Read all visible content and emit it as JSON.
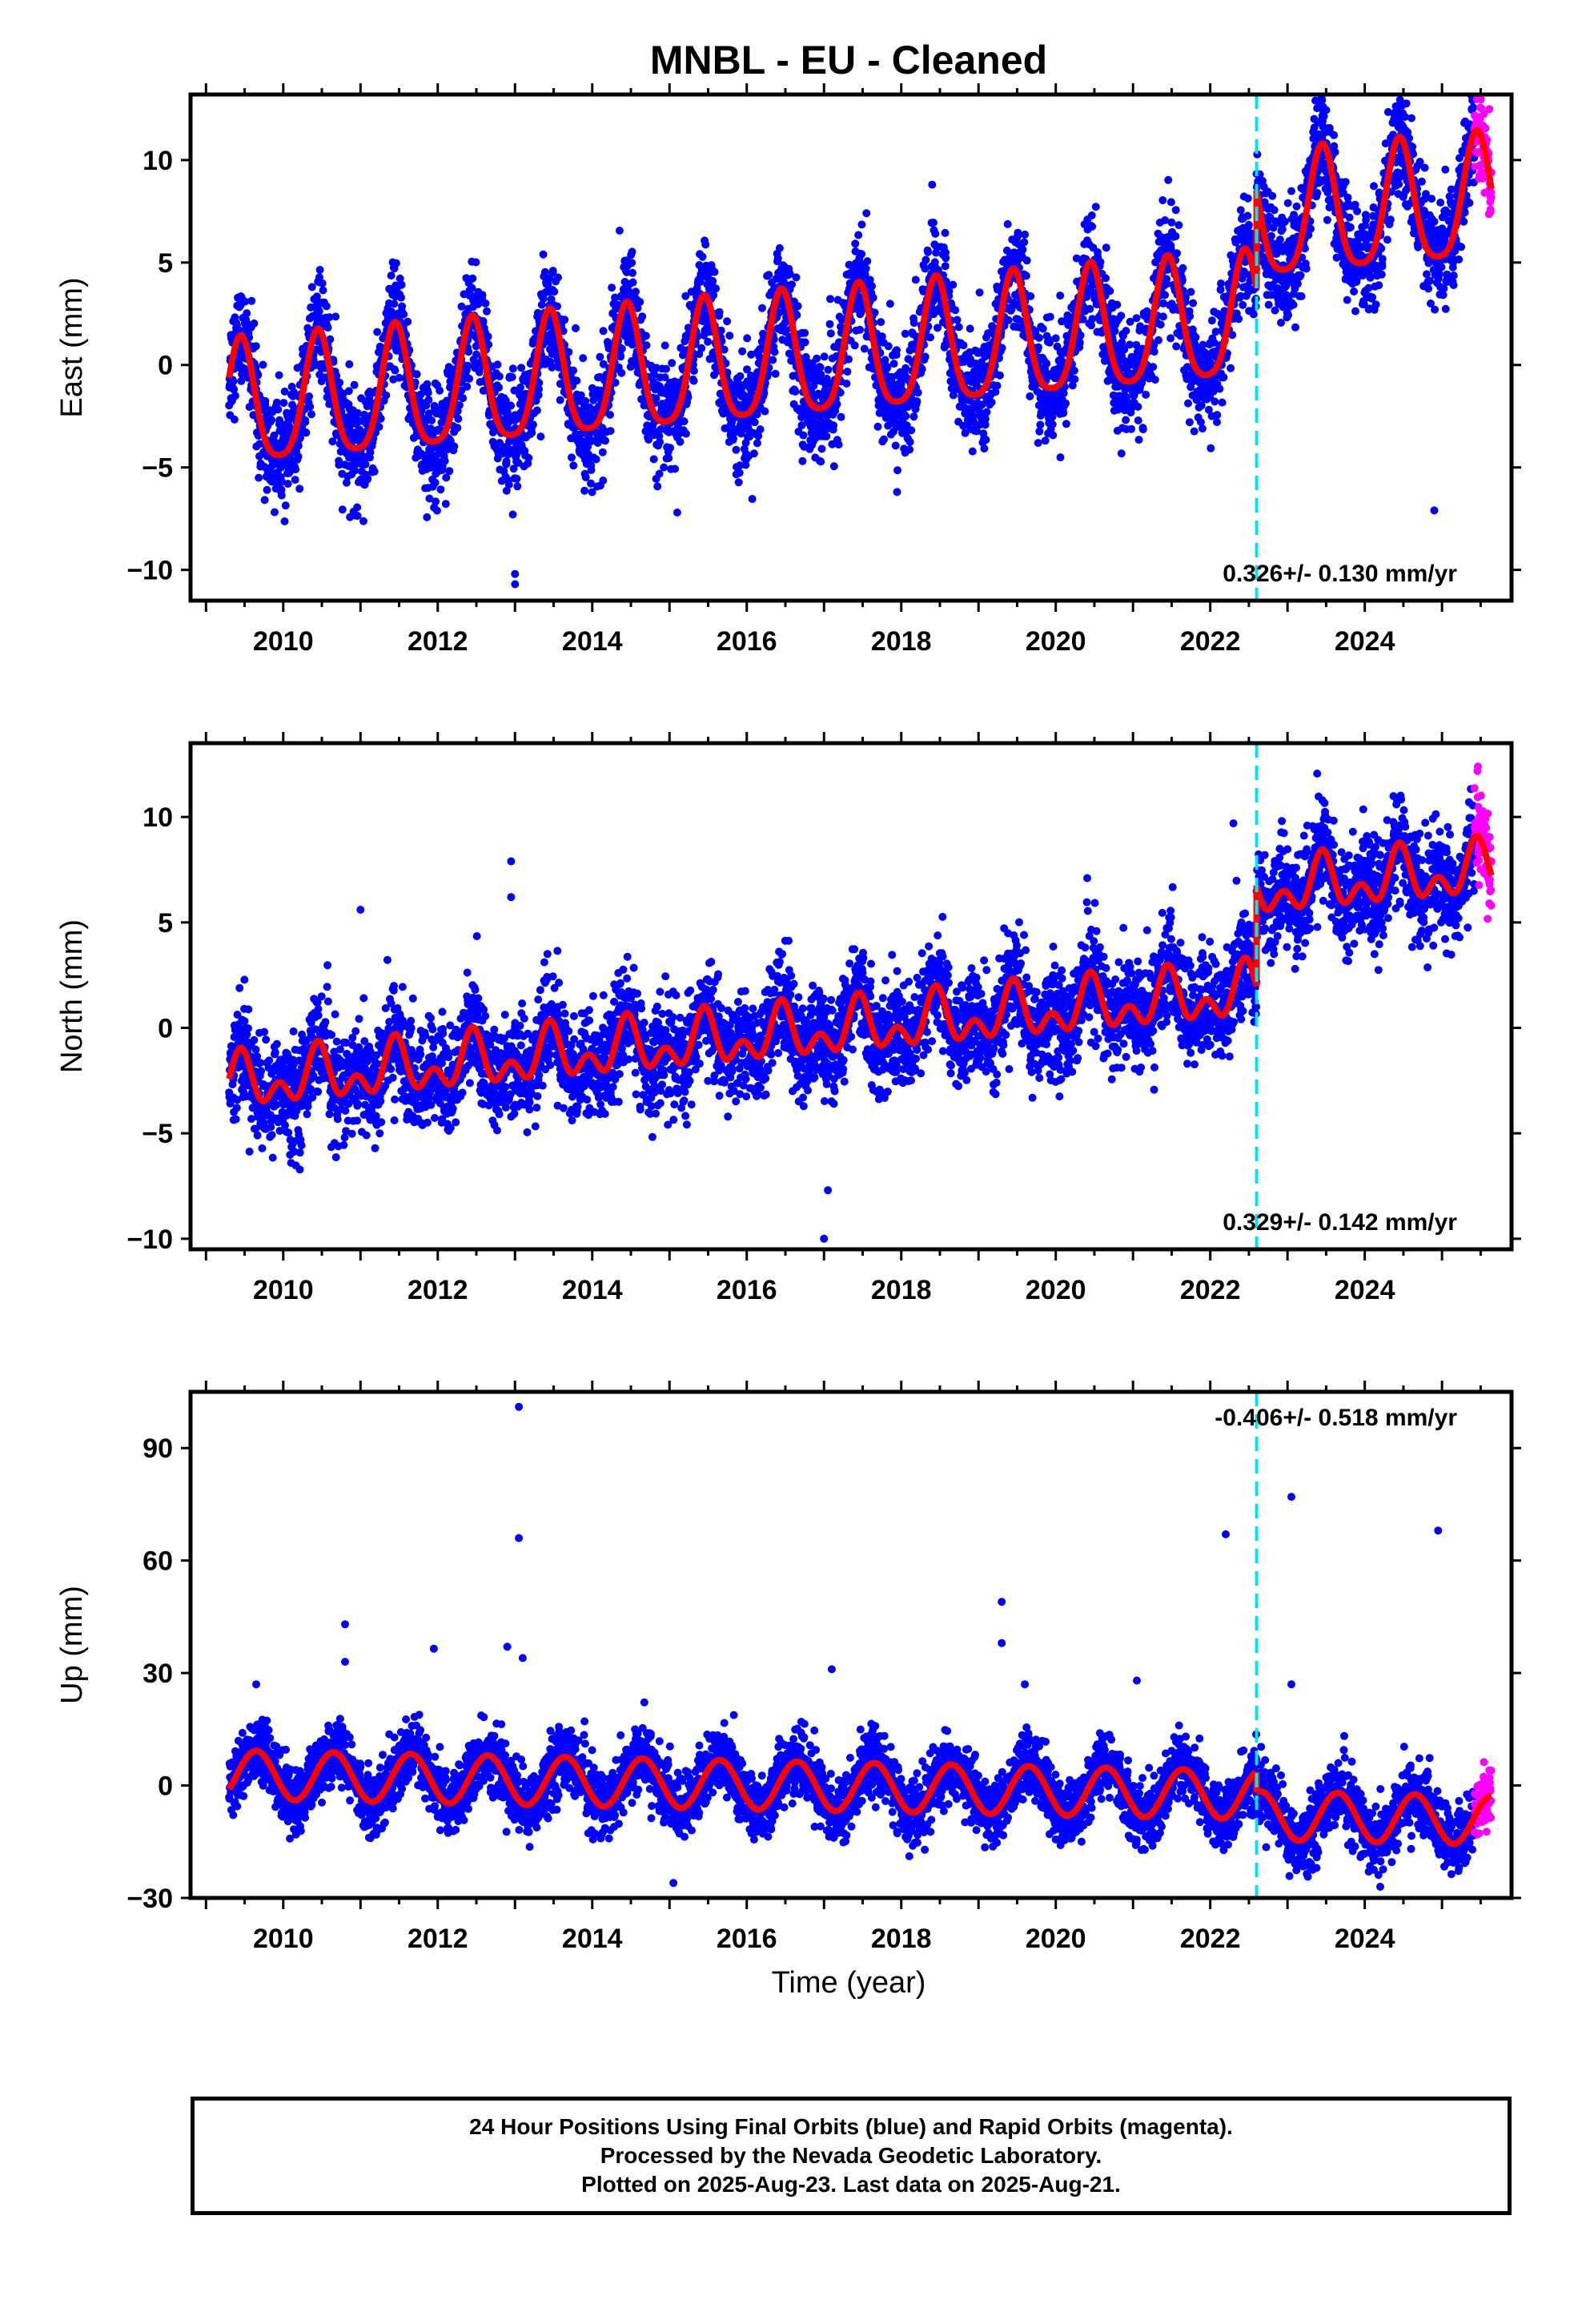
{
  "colors": {
    "final_orbits": "#0000ff",
    "rapid_orbits": "#ff00ff",
    "model": "#ff0000",
    "event_line": "#00e5ee",
    "axes": "#000000",
    "background": "#ffffff"
  },
  "title": "MNBL  - EU - Cleaned",
  "x_axis_label": "Time (year)",
  "x_ticks": [
    "2010",
    "2012",
    "2014",
    "2016",
    "2018",
    "2020",
    "2022",
    "2024"
  ],
  "chart_data": [
    {
      "type": "scatter",
      "name": "East",
      "ylabel": "East (mm)",
      "xlim": [
        2008.8,
        2025.9
      ],
      "ylim": [
        -11.5,
        13.2
      ],
      "yticks": [
        -10,
        -5,
        0,
        5,
        10
      ],
      "ytick_labels": [
        "−10",
        "−5",
        "0",
        "5",
        "10"
      ],
      "data_start": 2009.3,
      "event_year": 2022.6,
      "rapid_start": 2025.42,
      "data_end": 2025.64,
      "velocity_text": "0.326+/- 0.130 mm/yr",
      "velocity_position": "bottom-right",
      "model_params": {
        "intercept_2009": -2.3,
        "rate": 0.326,
        "offset": 4.8,
        "annual_amplitude": 3.0,
        "semiannual_amplitude": 0.6,
        "annual_peak_year_fraction": 0.45
      },
      "scatter_sd": 1.3,
      "outliers": [
        {
          "x": 2013.0,
          "y": -10.7
        },
        {
          "x": 2013.0,
          "y": -10.2
        },
        {
          "x": 2018.4,
          "y": 8.8
        },
        {
          "x": 2024.9,
          "y": -7.1
        },
        {
          "x": 2015.1,
          "y": -7.2
        }
      ]
    },
    {
      "type": "scatter",
      "name": "North",
      "ylabel": "North (mm)",
      "xlim": [
        2008.8,
        2025.9
      ],
      "ylim": [
        -10.5,
        13.5
      ],
      "yticks": [
        -10,
        -5,
        0,
        5,
        10
      ],
      "ytick_labels": [
        "−10",
        "−5",
        "0",
        "5",
        "10"
      ],
      "data_start": 2009.3,
      "event_year": 2022.6,
      "rapid_start": 2025.42,
      "data_end": 2025.64,
      "velocity_text": "0.329+/- 0.142 mm/yr",
      "velocity_position": "bottom-right",
      "model_params": {
        "intercept_2009": -2.8,
        "rate": 0.329,
        "offset": 4.8,
        "annual_amplitude": 0.9,
        "semiannual_amplitude": 0.8,
        "annual_peak_year_fraction": 0.45
      },
      "scatter_sd": 1.2,
      "outliers": [
        {
          "x": 2012.95,
          "y": 7.9
        },
        {
          "x": 2012.95,
          "y": 6.2
        },
        {
          "x": 2011.0,
          "y": 5.6
        },
        {
          "x": 2017.0,
          "y": -10.0
        },
        {
          "x": 2017.05,
          "y": -7.7
        },
        {
          "x": 2022.3,
          "y": 9.7
        }
      ]
    },
    {
      "type": "scatter",
      "name": "Up",
      "ylabel": "Up (mm)",
      "xlim": [
        2008.8,
        2025.9
      ],
      "ylim": [
        -30,
        105
      ],
      "yticks": [
        -30,
        0,
        30,
        60,
        90
      ],
      "ytick_labels": [
        "−30",
        "0",
        "30",
        "60",
        "90"
      ],
      "data_start": 2009.3,
      "event_year": 2022.6,
      "rapid_start": 2025.42,
      "data_end": 2025.64,
      "velocity_text": "-0.406+/- 0.518 mm/yr",
      "velocity_position": "top-right",
      "model_params": {
        "intercept_2009": 3.0,
        "rate": -0.406,
        "offset": -5.5,
        "annual_amplitude": 6.5,
        "semiannual_amplitude": 0.0,
        "annual_peak_year_fraction": 0.65
      },
      "scatter_sd": 4.2,
      "outliers": [
        {
          "x": 2013.05,
          "y": 101
        },
        {
          "x": 2013.05,
          "y": 66
        },
        {
          "x": 2010.8,
          "y": 43
        },
        {
          "x": 2010.8,
          "y": 33
        },
        {
          "x": 2011.95,
          "y": 36.5
        },
        {
          "x": 2012.9,
          "y": 37
        },
        {
          "x": 2013.1,
          "y": 34
        },
        {
          "x": 2009.65,
          "y": 27
        },
        {
          "x": 2017.1,
          "y": 31
        },
        {
          "x": 2019.3,
          "y": 49
        },
        {
          "x": 2019.3,
          "y": 38
        },
        {
          "x": 2019.6,
          "y": 27
        },
        {
          "x": 2021.05,
          "y": 28
        },
        {
          "x": 2022.2,
          "y": 67
        },
        {
          "x": 2023.05,
          "y": 77
        },
        {
          "x": 2023.05,
          "y": 27
        },
        {
          "x": 2024.95,
          "y": 68
        },
        {
          "x": 2015.05,
          "y": -26
        },
        {
          "x": 2024.2,
          "y": -27
        }
      ]
    }
  ],
  "caption": {
    "line1": "24 Hour Positions Using Final Orbits (blue) and Rapid Orbits (magenta).",
    "line2": "Processed by the Nevada Geodetic Laboratory.",
    "line3": "Plotted on 2025-Aug-23. Last data on 2025-Aug-21."
  }
}
